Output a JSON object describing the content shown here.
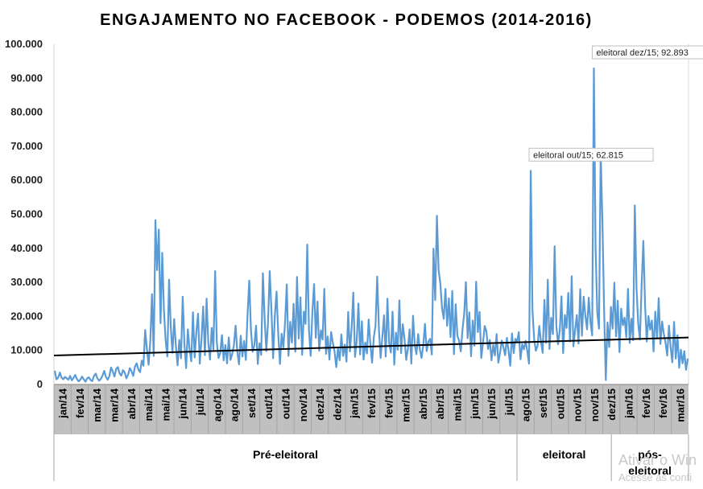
{
  "chart_data": {
    "type": "line",
    "title": "ENGAJAMENTO NO FACEBOOK - PODEMOS (2014-2016)",
    "xlabel": "",
    "ylabel": "",
    "ylim": [
      0,
      100000
    ],
    "yticks": [
      0,
      10000,
      20000,
      30000,
      40000,
      50000,
      60000,
      70000,
      80000,
      90000,
      100000
    ],
    "ytick_labels": [
      "0",
      "10.000",
      "20.000",
      "30.000",
      "40.000",
      "50.000",
      "60.000",
      "70.000",
      "80.000",
      "90.000",
      "100.000"
    ],
    "x_labels": [
      "jan/14",
      "fev/14",
      "mar/14",
      "mar/14",
      "abr/14",
      "mai/14",
      "mai/14",
      "jun/14",
      "jul/14",
      "ago/14",
      "ago/14",
      "set/14",
      "out/14",
      "out/14",
      "nov/14",
      "dez/14",
      "dez/14",
      "jan/15",
      "fev/15",
      "fev/15",
      "mar/15",
      "abr/15",
      "abr/15",
      "mai/15",
      "jun/15",
      "jun/15",
      "jul/15",
      "ago/15",
      "set/15",
      "out/15",
      "nov/15",
      "nov/15",
      "dez/15",
      "jan/16",
      "fev/16",
      "fev/16",
      "mar/16"
    ],
    "period_labels": [
      "Pré-eleitoral",
      "eleitoral",
      "pós-eleitoral"
    ],
    "grid": false,
    "legend": "none",
    "series": [
      {
        "color": "#5b9bd5",
        "values": [
          4000,
          1500,
          2000,
          3500,
          2000,
          1500,
          2200,
          1800,
          1400,
          2500,
          1200,
          1900,
          2800,
          1600,
          900,
          1400,
          2300,
          1500,
          800,
          1800,
          2100,
          1300,
          1000,
          2500,
          3200,
          1800,
          1100,
          1600,
          2600,
          4000,
          2200,
          1400,
          2400,
          5000,
          3800,
          2300,
          4600,
          5100,
          3200,
          2600,
          4200,
          3500,
          1800,
          2900,
          4800,
          3900,
          2500,
          5200,
          6200,
          4400,
          3600,
          7000,
          5500,
          16000,
          10500,
          5800,
          12800,
          26500,
          8400,
          48300,
          33600,
          45500,
          18000,
          38700,
          21800,
          12900,
          8200,
          30800,
          16800,
          9300,
          19200,
          11200,
          5600,
          13100,
          7700,
          25800,
          11900,
          4800,
          16200,
          10400,
          6800,
          21200,
          7900,
          15400,
          20800,
          6100,
          13200,
          22900,
          8600,
          25200,
          12200,
          7300,
          16600,
          10300,
          33300,
          12200,
          7800,
          9200,
          14500,
          7100,
          11600,
          6200,
          13800,
          7200,
          8900,
          11500,
          17300,
          9600,
          5900,
          14300,
          8200,
          12800,
          7200,
          20500,
          30500,
          15900,
          9600,
          11500,
          17300,
          6000,
          12100,
          8700,
          32700,
          19600,
          9800,
          18100,
          33300,
          22000,
          7700,
          20100,
          27300,
          14800,
          6000,
          14900,
          10800,
          18300,
          29400,
          8400,
          18400,
          12300,
          23700,
          9600,
          31600,
          13500,
          25600,
          8700,
          21400,
          17800,
          41100,
          16100,
          8400,
          21200,
          29500,
          13700,
          24400,
          9900,
          15900,
          13200,
          28100,
          9000,
          14100,
          7300,
          15400,
          12200,
          9700,
          5100,
          10700,
          7100,
          14700,
          8400,
          11700,
          6700,
          21300,
          9700,
          16400,
          27000,
          8100,
          12900,
          23800,
          8800,
          18600,
          7300,
          12300,
          9100,
          19100,
          11900,
          6400,
          13800,
          17200,
          31700,
          16400,
          7800,
          13800,
          20300,
          8200,
          25200,
          12200,
          9400,
          21400,
          5800,
          15200,
          10200,
          24700,
          9200,
          17700,
          13400,
          7200,
          10500,
          16200,
          6100,
          20200,
          11700,
          8900,
          14800,
          10300,
          7800,
          11500,
          17800,
          9800,
          12600,
          13400,
          8800,
          39900,
          24800,
          49600,
          33600,
          29700,
          22500,
          19300,
          28100,
          17200,
          25300,
          13900,
          27500,
          8900,
          23600,
          14300,
          12900,
          9700,
          16200,
          20800,
          30100,
          13600,
          21200,
          8300,
          18800,
          11400,
          30200,
          15400,
          21300,
          7800,
          12200,
          17200,
          15600,
          10400,
          13100,
          7100,
          11600,
          8500,
          14800,
          6400,
          9200,
          12900,
          10900,
          8600,
          13700,
          9800,
          5500,
          15000,
          9200,
          13400,
          12500,
          15400,
          7400,
          11800,
          10300,
          12800,
          9700,
          6100,
          62800,
          21800,
          13300,
          9900,
          11400,
          17200,
          12500,
          9300,
          24900,
          12200,
          30800,
          10400,
          19600,
          14800,
          40600,
          17300,
          11800,
          15800,
          25900,
          9200,
          20400,
          16600,
          26900,
          12600,
          31800,
          11200,
          15900,
          20400,
          12000,
          28000,
          14300,
          25800,
          20300,
          16200,
          25500,
          18400,
          14400,
          92900,
          40100,
          21100,
          16400,
          68000,
          48100,
          22000,
          1300,
          18200,
          11000,
          22800,
          16400,
          29900,
          14100,
          24600,
          9500,
          22300,
          17400,
          19600,
          13900,
          28100,
          12200,
          19300,
          13000,
          52600,
          28300,
          17900,
          13200,
          29300,
          42200,
          23500,
          12600,
          20100,
          16100,
          18800,
          9700,
          21400,
          13500,
          25400,
          11900,
          18500,
          14800,
          12300,
          8500,
          17300,
          10900,
          6500,
          18400,
          7600,
          14500,
          4900,
          10200,
          6200,
          9800,
          4300,
          7600
        ]
      }
    ],
    "trendline": {
      "color": "#000000",
      "start": 8500,
      "end": 13800
    },
    "annotations": [
      {
        "text": "eleitoral out/15; 62.815",
        "value": 62815
      },
      {
        "text": "eleitoral dez/15; 92.893",
        "value": 92893
      }
    ],
    "category_band_color": "#c0c0c0"
  },
  "watermark": {
    "line1": "Ativar o Win",
    "line2": "Acesse as confi"
  }
}
